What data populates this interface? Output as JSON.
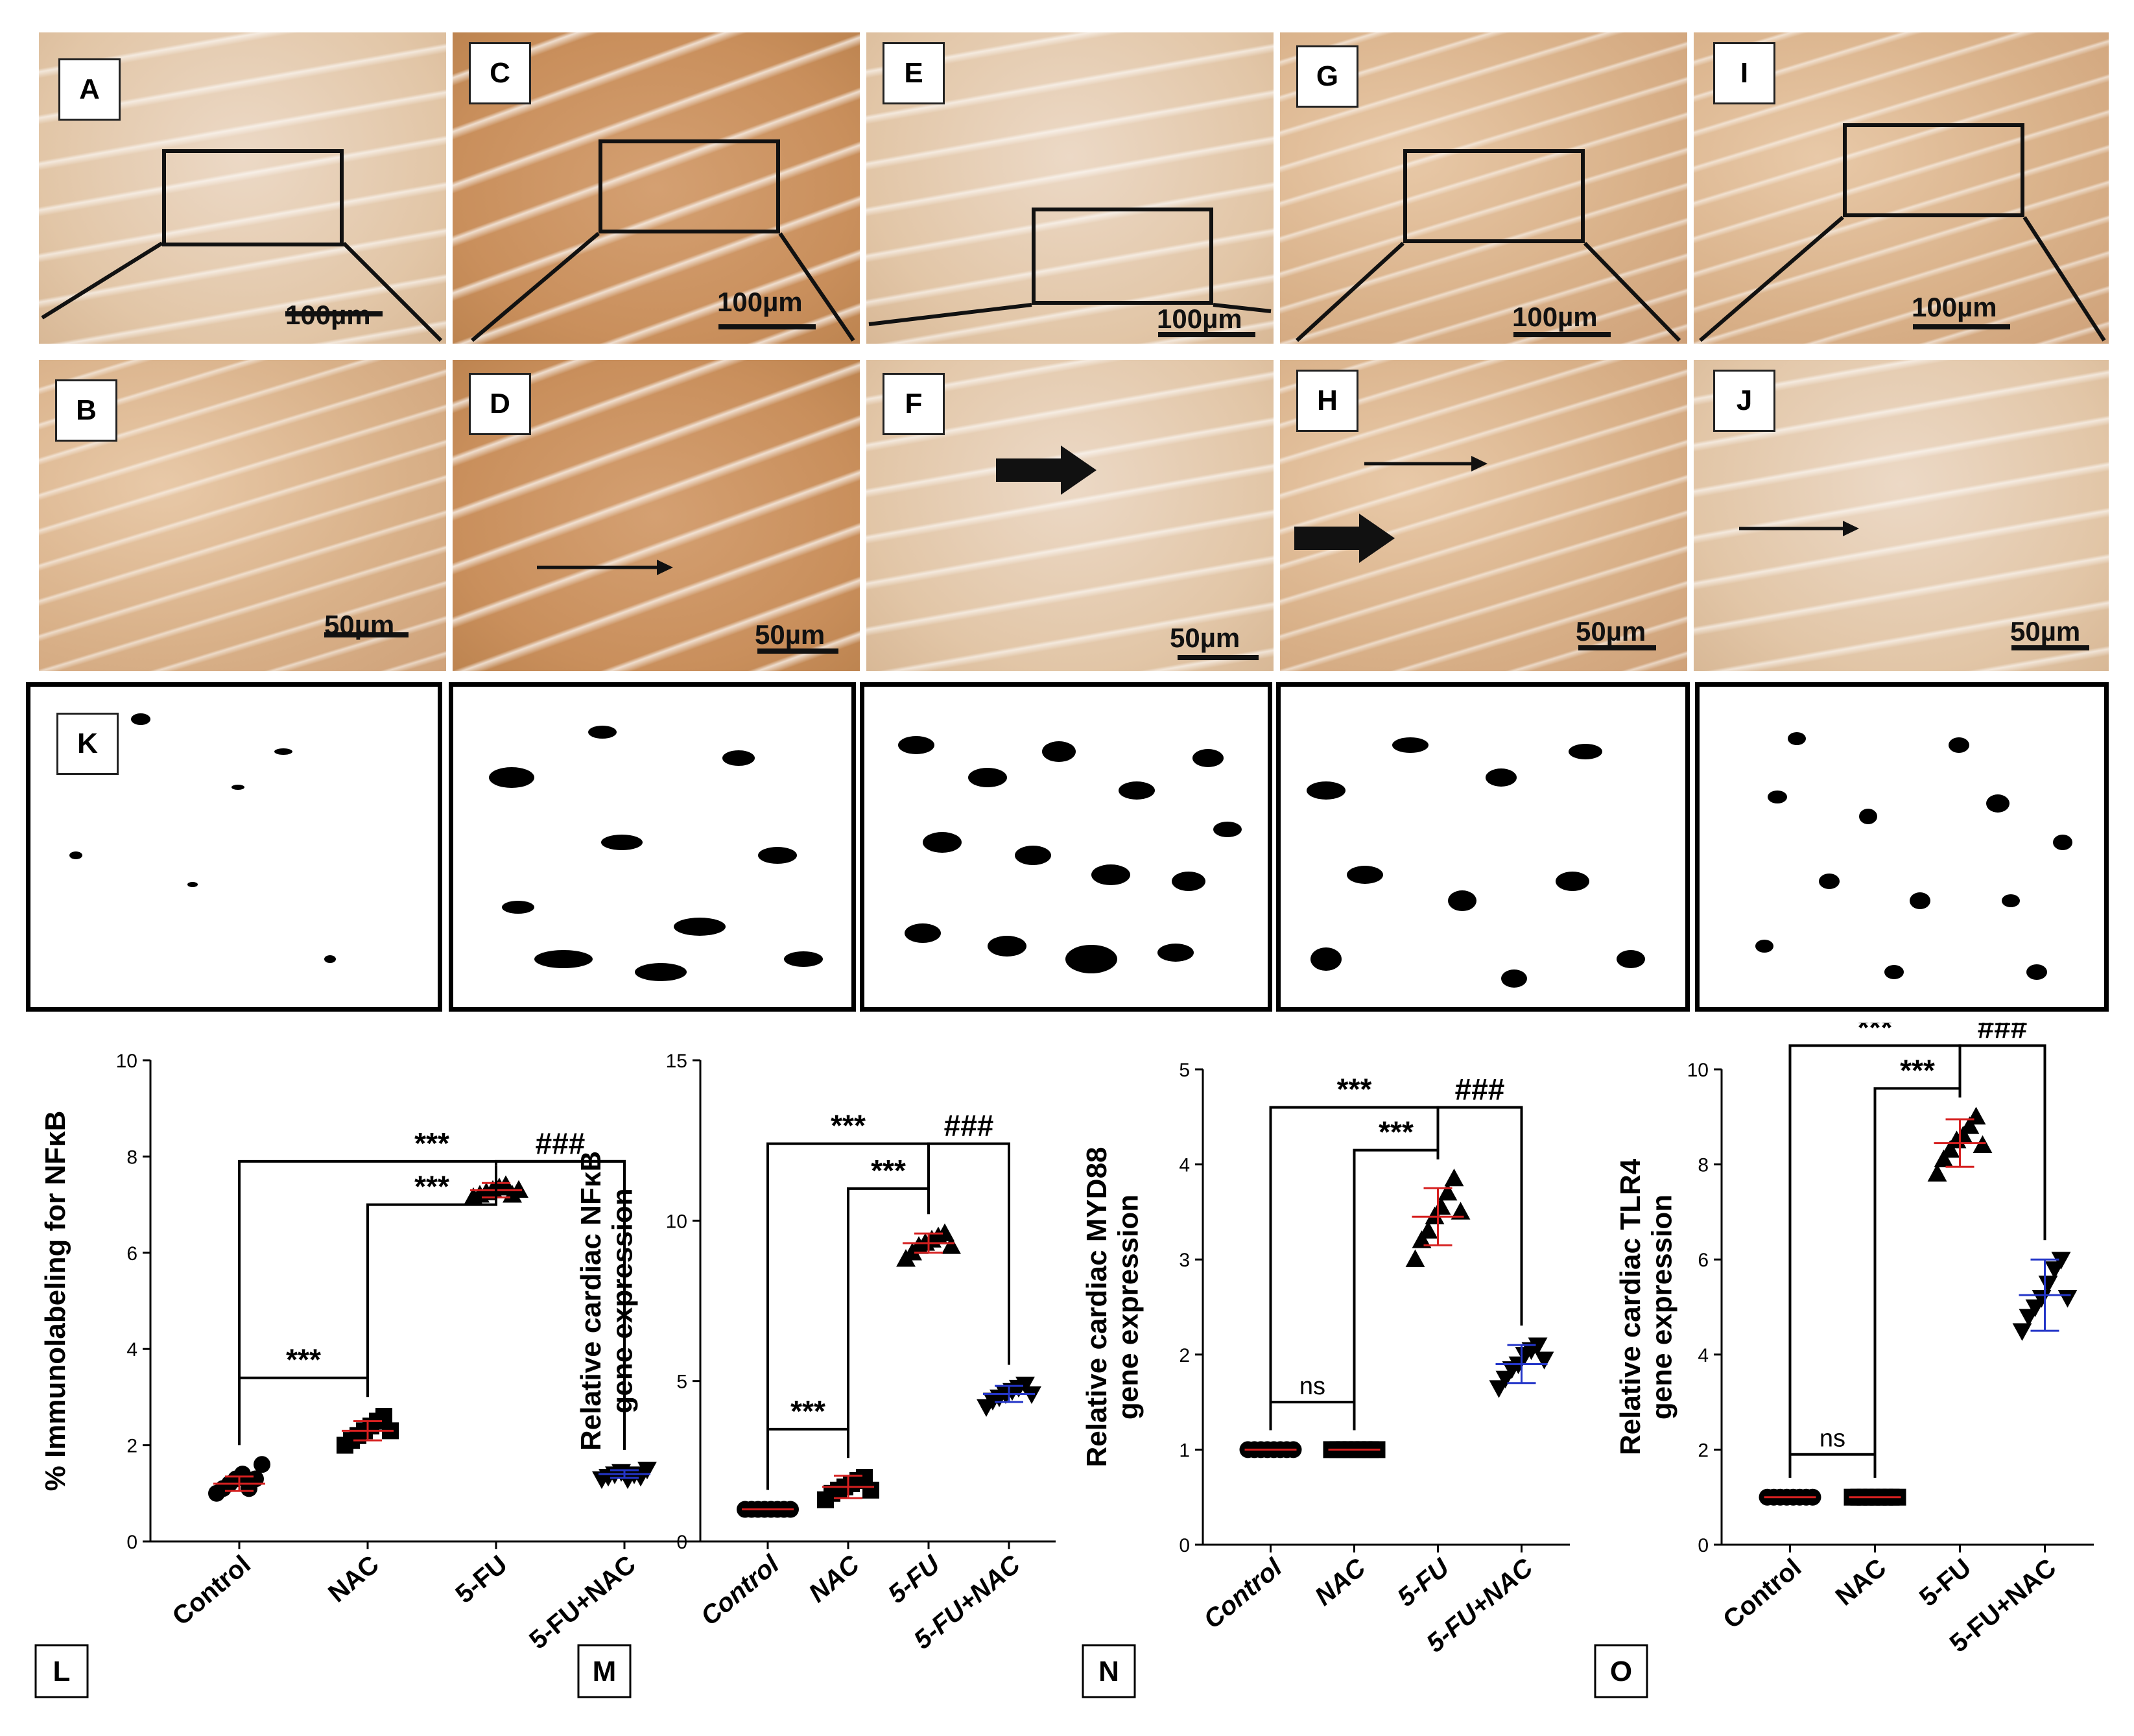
{
  "micro_top": [
    {
      "letter": "A",
      "scale": "100µm"
    },
    {
      "letter": "C",
      "scale": "100µm"
    },
    {
      "letter": "E",
      "scale": "100µm"
    },
    {
      "letter": "G",
      "scale": "100µm"
    },
    {
      "letter": "I",
      "scale": "100µm"
    }
  ],
  "micro_mid": [
    {
      "letter": "B",
      "scale": "50µm"
    },
    {
      "letter": "D",
      "scale": "50µm"
    },
    {
      "letter": "F",
      "scale": "50µm"
    },
    {
      "letter": "H",
      "scale": "50µm"
    },
    {
      "letter": "J",
      "scale": "50µm"
    }
  ],
  "binary_label": "K",
  "colors": {
    "stain": "#a5521f",
    "red_bar": "#d62020",
    "blue_bar": "#2436c8"
  },
  "chart_data": [
    {
      "panel": "L",
      "type": "scatter",
      "ylabel": "% Immunolabeling for NFκB",
      "categories": [
        "Control",
        "NAC",
        "5-FU",
        "5-FU+NAC"
      ],
      "ylim": [
        0,
        10
      ],
      "yticks": [
        "0",
        "2",
        "4",
        "6",
        "8",
        "10"
      ],
      "markers": [
        "circle",
        "square",
        "triangle",
        "inv-triangle"
      ],
      "means": [
        1.2,
        2.3,
        7.3,
        1.4
      ],
      "errs": [
        0.15,
        0.2,
        0.15,
        0.08
      ],
      "values": [
        [
          1.0,
          1.1,
          1.2,
          1.3,
          1.4,
          1.1,
          1.3,
          1.6
        ],
        [
          2.0,
          2.1,
          2.2,
          2.3,
          2.4,
          2.5,
          2.6,
          2.3
        ],
        [
          7.15,
          7.2,
          7.25,
          7.3,
          7.35,
          7.4,
          7.2,
          7.3
        ],
        [
          1.3,
          1.35,
          1.4,
          1.45,
          1.3,
          1.4,
          1.35,
          1.5
        ]
      ],
      "sig": [
        {
          "from": 0,
          "to": 3,
          "y": 7.9,
          "label": "***"
        },
        {
          "from": 2,
          "to": 3,
          "y": 7.9,
          "label": "###"
        },
        {
          "from": 1,
          "to": 2,
          "y": 7.0,
          "label": "***"
        },
        {
          "from": 0,
          "to": 1,
          "y": 3.4,
          "label": "***"
        }
      ]
    },
    {
      "panel": "M",
      "type": "scatter",
      "ylabel": "Relative cardiac NFκB\ngene expression",
      "categories": [
        "Control",
        "NAC",
        "5-FU",
        "5-FU+NAC"
      ],
      "ylim": [
        0,
        15
      ],
      "yticks": [
        "0",
        "5",
        "10",
        "15"
      ],
      "markers": [
        "circle",
        "square",
        "triangle",
        "inv-triangle"
      ],
      "means": [
        1.0,
        1.7,
        9.3,
        4.6
      ],
      "errs": [
        0.0,
        0.35,
        0.3,
        0.25
      ],
      "values": [
        [
          1,
          1,
          1,
          1,
          1,
          1,
          1,
          1
        ],
        [
          1.3,
          1.5,
          1.6,
          1.7,
          1.8,
          1.9,
          2.0,
          1.6
        ],
        [
          8.8,
          9.0,
          9.2,
          9.3,
          9.4,
          9.5,
          9.6,
          9.2
        ],
        [
          4.2,
          4.4,
          4.5,
          4.6,
          4.7,
          4.8,
          4.9,
          4.6
        ]
      ],
      "sig": [
        {
          "from": 0,
          "to": 2,
          "y": 12.4,
          "label": "***"
        },
        {
          "from": 2,
          "to": 3,
          "y": 12.4,
          "label": "###"
        },
        {
          "from": 1,
          "to": 2,
          "y": 11.0,
          "label": "***"
        },
        {
          "from": 0,
          "to": 1,
          "y": 3.5,
          "label": "***"
        }
      ]
    },
    {
      "panel": "N",
      "type": "scatter",
      "ylabel": "Relative cardiac MYD88\ngene expression",
      "categories": [
        "Control",
        "NAC",
        "5-FU",
        "5-FU+NAC"
      ],
      "ylim": [
        0,
        5
      ],
      "yticks": [
        "0",
        "1",
        "2",
        "3",
        "4",
        "5"
      ],
      "markers": [
        "circle",
        "square",
        "triangle",
        "inv-triangle"
      ],
      "means": [
        1.0,
        1.0,
        3.45,
        1.9
      ],
      "errs": [
        0.0,
        0.0,
        0.3,
        0.2
      ],
      "values": [
        [
          1,
          1,
          1,
          1,
          1,
          1,
          1,
          1
        ],
        [
          1,
          1,
          1,
          1,
          1,
          1,
          1,
          1
        ],
        [
          3.0,
          3.2,
          3.3,
          3.45,
          3.55,
          3.7,
          3.85,
          3.5
        ],
        [
          1.65,
          1.75,
          1.85,
          1.9,
          2.0,
          2.05,
          2.1,
          1.95
        ]
      ],
      "sig": [
        {
          "from": 0,
          "to": 2,
          "y": 4.6,
          "label": "***"
        },
        {
          "from": 2,
          "to": 3,
          "y": 4.6,
          "label": "###"
        },
        {
          "from": 1,
          "to": 2,
          "y": 4.15,
          "label": "***"
        },
        {
          "from": 0,
          "to": 1,
          "y": 1.5,
          "label": "ns"
        }
      ]
    },
    {
      "panel": "O",
      "type": "scatter",
      "ylabel": "Relative cardiac TLR4\ngene expression",
      "categories": [
        "Control",
        "NAC",
        "5-FU",
        "5-FU+NAC"
      ],
      "ylim": [
        0,
        10
      ],
      "yticks": [
        "0",
        "2",
        "4",
        "6",
        "8",
        "10"
      ],
      "markers": [
        "circle",
        "square",
        "triangle",
        "inv-triangle"
      ],
      "means": [
        1.0,
        1.0,
        8.45,
        5.25
      ],
      "errs": [
        0.0,
        0.0,
        0.5,
        0.75
      ],
      "values": [
        [
          1,
          1,
          1,
          1,
          1,
          1,
          1,
          1
        ],
        [
          1,
          1,
          1,
          1,
          1,
          1,
          1,
          1
        ],
        [
          7.8,
          8.1,
          8.3,
          8.5,
          8.6,
          8.8,
          9.0,
          8.4
        ],
        [
          4.5,
          4.8,
          5.0,
          5.2,
          5.5,
          5.8,
          6.0,
          5.2
        ]
      ],
      "sig": [
        {
          "from": 0,
          "to": 2,
          "y": 10.5,
          "label": "***"
        },
        {
          "from": 2,
          "to": 3,
          "y": 10.5,
          "label": "###"
        },
        {
          "from": 1,
          "to": 2,
          "y": 9.6,
          "label": "***"
        },
        {
          "from": 0,
          "to": 1,
          "y": 1.9,
          "label": "ns"
        }
      ]
    }
  ]
}
